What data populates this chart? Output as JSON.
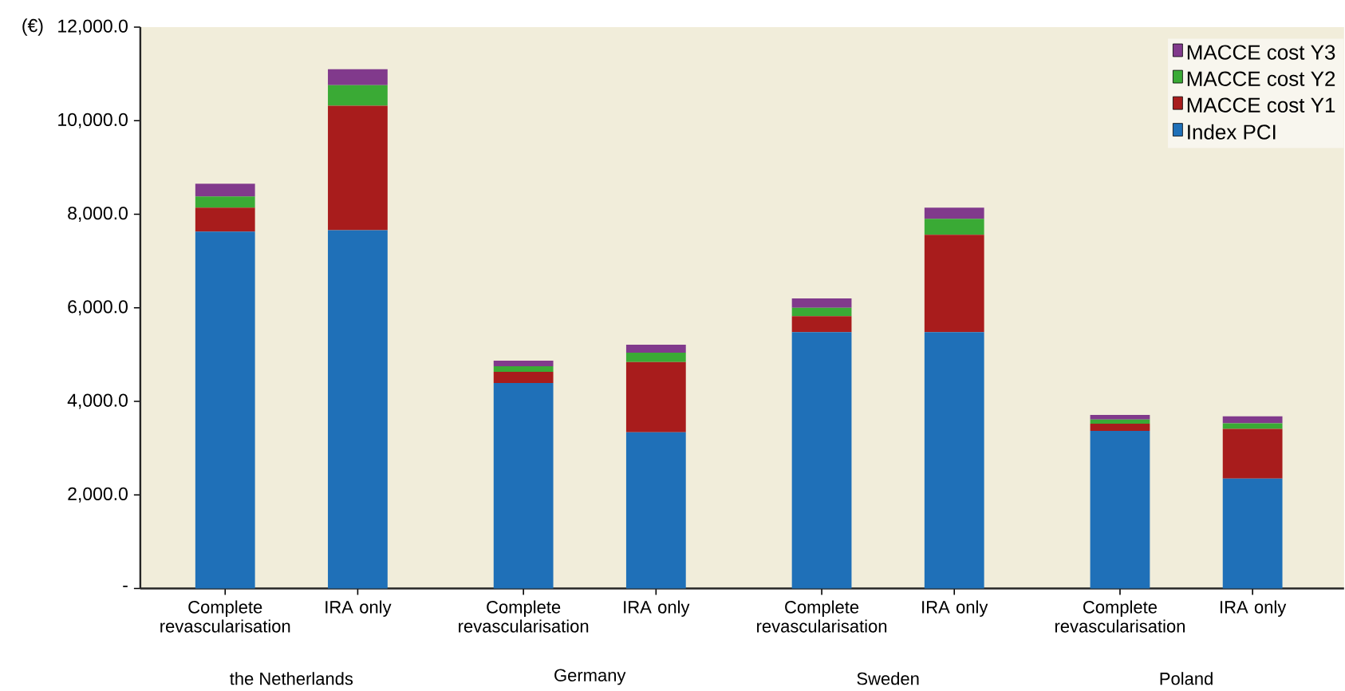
{
  "chart_data": {
    "type": "bar",
    "stacked": true,
    "ylabel": "(€)",
    "categories": [
      "Complete revascularisation",
      "IRA only",
      "Complete revascularisation",
      "IRA only",
      "Complete revascularisation",
      "IRA only",
      "Complete revascularisation",
      "IRA only"
    ],
    "annotations": [
      "the Netherlands",
      "Germany",
      "Sweden",
      "Poland"
    ],
    "series": [
      {
        "name": "Index PCI",
        "color": "#1f70b8",
        "values": [
          7630,
          7660,
          4390,
          3340,
          5480,
          5480,
          3370,
          2350
        ]
      },
      {
        "name": "MACCE cost Y1",
        "color": "#a81c1c",
        "values": [
          510,
          2660,
          240,
          1500,
          340,
          2080,
          150,
          1060
        ]
      },
      {
        "name": "MACCE cost Y2",
        "color": "#3aaa35",
        "values": [
          240,
          440,
          120,
          200,
          180,
          340,
          90,
          120
        ]
      },
      {
        "name": "MACCE cost Y3",
        "color": "#813a8c",
        "values": [
          270,
          340,
          120,
          170,
          200,
          240,
          100,
          150
        ]
      }
    ],
    "ylim": [
      0,
      12000
    ],
    "yticks": [
      {
        "value": 0,
        "label": "-"
      },
      {
        "value": 2000,
        "label": "2,000.0"
      },
      {
        "value": 4000,
        "label": "4,000.0"
      },
      {
        "value": 6000,
        "label": "6,000.0"
      },
      {
        "value": 8000,
        "label": "8,000.0"
      },
      {
        "value": 10000,
        "label": "10,000.0"
      },
      {
        "value": 12000,
        "label": "12,000.0"
      }
    ],
    "legend": "top right"
  }
}
